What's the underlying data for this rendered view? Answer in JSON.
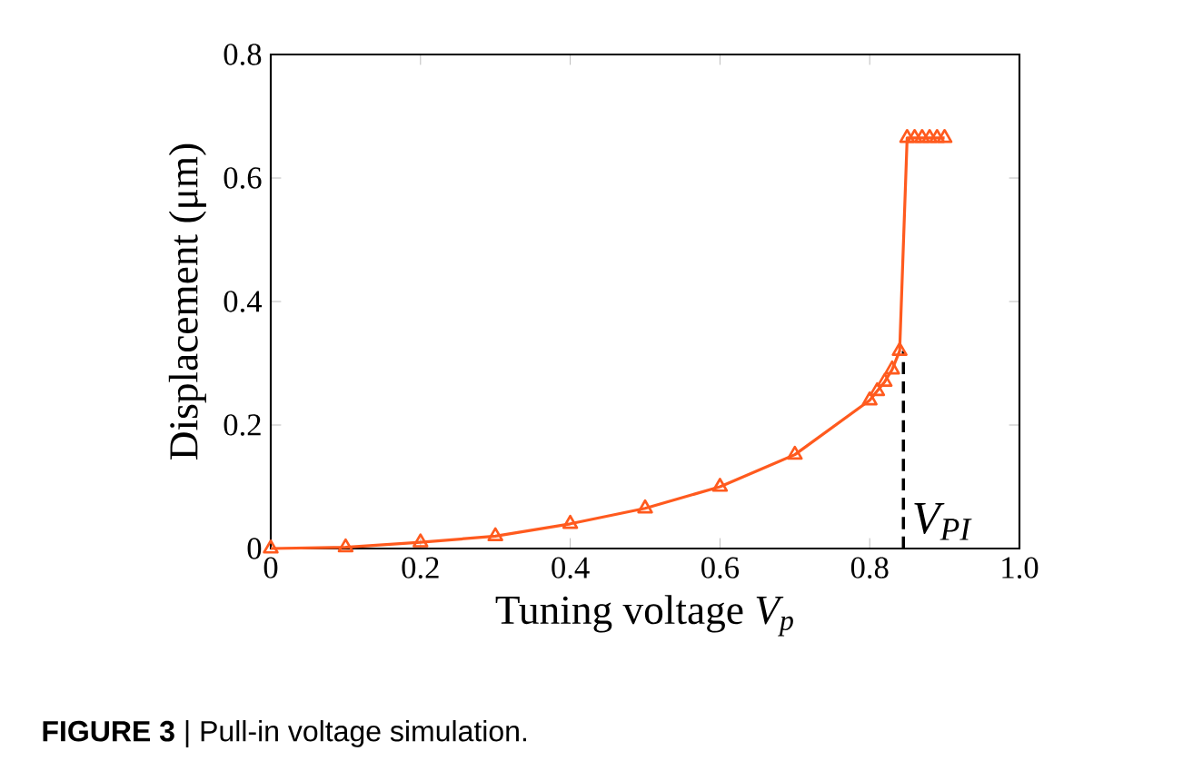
{
  "chart_data": {
    "type": "line",
    "xlabel": "Tuning voltage *V$_{p}$*",
    "ylabel": "Displacement (μm)",
    "x": [
      0,
      0.1,
      0.2,
      0.3,
      0.4,
      0.5,
      0.6,
      0.7,
      0.8,
      0.81,
      0.82,
      0.83,
      0.84,
      0.85,
      0.86,
      0.87,
      0.88,
      0.89,
      0.9
    ],
    "series": [
      {
        "color": "#ff5a1e",
        "values": [
          0,
          0.002,
          0.01,
          0.02,
          0.04,
          0.065,
          0.1,
          0.152,
          0.24,
          0.255,
          0.27,
          0.29,
          0.32,
          0.665,
          0.665,
          0.665,
          0.665,
          0.665,
          0.665
        ]
      }
    ],
    "marker": "triangle",
    "line_style": "solid",
    "xlim": [
      0,
      1
    ],
    "ylim": [
      0,
      0.8
    ],
    "xticks": [
      0,
      0.2,
      0.4,
      0.6,
      0.8,
      {
        "value": 1,
        "label": "1.0"
      }
    ],
    "yticks": [
      0,
      0.2,
      0.4,
      0.6,
      0.8
    ],
    "ref_lines": [
      {
        "axis": "x",
        "value": 0.845,
        "label": "V$_{PI}$",
        "line_style": "dashed",
        "color": "#000000"
      }
    ],
    "annotations": [
      "**FIGURE 3** | Pull-in voltage simulation."
    ]
  }
}
